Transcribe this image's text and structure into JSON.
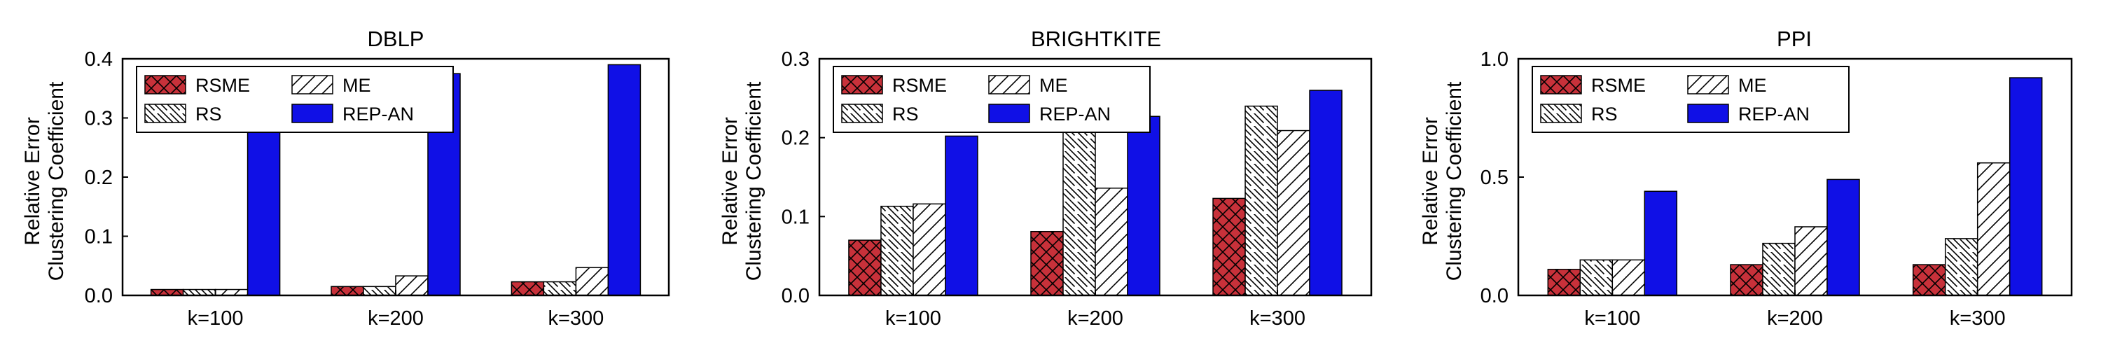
{
  "colors": {
    "RSME": "#c8313a",
    "RS": "#ffffff",
    "ME": "#ffffff",
    "REP-AN": "#1010e6",
    "axis": "#000000"
  },
  "chart_data": [
    {
      "type": "bar",
      "title": "DBLP",
      "ylabel": [
        "Relative Error",
        "Clustering Coefficient"
      ],
      "categories": [
        "k=100",
        "k=200",
        "k=300"
      ],
      "ylim": [
        0,
        0.4
      ],
      "yticks": [
        "0.0",
        "0.1",
        "0.2",
        "0.3",
        "0.4"
      ],
      "legend": "top-left",
      "series": [
        {
          "name": "RSME",
          "pattern": "crosshatch",
          "values": [
            0.01,
            0.015,
            0.023
          ]
        },
        {
          "name": "RS",
          "pattern": "backslash",
          "values": [
            0.01,
            0.015,
            0.023
          ]
        },
        {
          "name": "ME",
          "pattern": "slash",
          "values": [
            0.01,
            0.033,
            0.047
          ]
        },
        {
          "name": "REP-AN",
          "pattern": "solid",
          "values": [
            0.3,
            0.375,
            0.39
          ]
        }
      ]
    },
    {
      "type": "bar",
      "title": "BRIGHTKITE",
      "ylabel": [
        "Relative Error",
        "Clustering Coefficient"
      ],
      "categories": [
        "k=100",
        "k=200",
        "k=300"
      ],
      "ylim": [
        0,
        0.3
      ],
      "yticks": [
        "0.0",
        "0.1",
        "0.2",
        "0.3"
      ],
      "legend": "top-left",
      "series": [
        {
          "name": "RSME",
          "pattern": "crosshatch",
          "values": [
            0.07,
            0.081,
            0.123
          ]
        },
        {
          "name": "RS",
          "pattern": "backslash",
          "values": [
            0.113,
            0.22,
            0.24
          ]
        },
        {
          "name": "ME",
          "pattern": "slash",
          "values": [
            0.116,
            0.136,
            0.209
          ]
        },
        {
          "name": "REP-AN",
          "pattern": "solid",
          "values": [
            0.202,
            0.227,
            0.26
          ]
        }
      ]
    },
    {
      "type": "bar",
      "title": "PPI",
      "ylabel": [
        "Relative Error",
        "Clustering Coefficient"
      ],
      "categories": [
        "k=100",
        "k=200",
        "k=300"
      ],
      "ylim": [
        0,
        1.0
      ],
      "yticks": [
        "0.0",
        "0.5",
        "1.0"
      ],
      "legend": "top-left",
      "series": [
        {
          "name": "RSME",
          "pattern": "crosshatch",
          "values": [
            0.11,
            0.13,
            0.13
          ]
        },
        {
          "name": "RS",
          "pattern": "backslash",
          "values": [
            0.15,
            0.22,
            0.24
          ]
        },
        {
          "name": "ME",
          "pattern": "slash",
          "values": [
            0.15,
            0.29,
            0.56
          ]
        },
        {
          "name": "REP-AN",
          "pattern": "solid",
          "values": [
            0.44,
            0.49,
            0.92
          ]
        }
      ]
    }
  ]
}
